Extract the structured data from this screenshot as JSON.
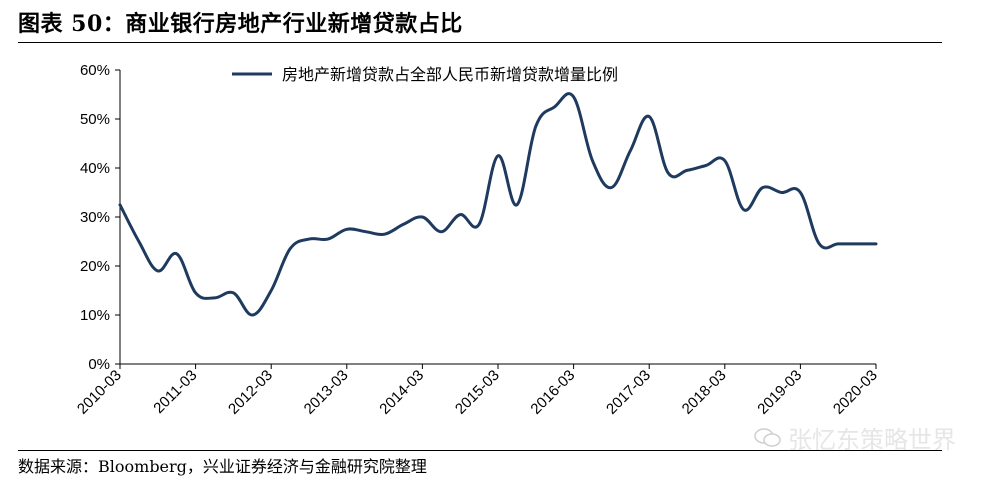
{
  "header": {
    "title": "图表 50：商业银行房地产行业新增贷款占比"
  },
  "footer": {
    "source": "数据来源：Bloomberg，兴业证券经济与金融研究院整理"
  },
  "watermark": {
    "text": "张忆东策略世界",
    "icon": "wechat-icon"
  },
  "colors": {
    "line": "#1f3a5f",
    "axis": "#000000"
  },
  "chart_data": {
    "type": "line",
    "title": "",
    "xlabel": "",
    "ylabel": "",
    "ylim": [
      0,
      60
    ],
    "y_ticks": [
      "0%",
      "10%",
      "20%",
      "30%",
      "40%",
      "50%",
      "60%"
    ],
    "x_ticks": [
      "2010-03",
      "2011-03",
      "2012-03",
      "2013-03",
      "2014-03",
      "2015-03",
      "2016-03",
      "2017-03",
      "2018-03",
      "2019-03",
      "2020-03"
    ],
    "legend": {
      "position": "top-center"
    },
    "grid": false,
    "series": [
      {
        "name": "房地产新增贷款占全部人民币新增贷款增量比例",
        "x": [
          2010.0,
          2010.25,
          2010.5,
          2010.75,
          2011.0,
          2011.25,
          2011.5,
          2011.75,
          2012.0,
          2012.25,
          2012.5,
          2012.75,
          2013.0,
          2013.25,
          2013.5,
          2013.75,
          2014.0,
          2014.25,
          2014.5,
          2014.75,
          2015.0,
          2015.25,
          2015.5,
          2015.75,
          2016.0,
          2016.25,
          2016.5,
          2016.75,
          2017.0,
          2017.25,
          2017.5,
          2017.75,
          2018.0,
          2018.25,
          2018.5,
          2018.75,
          2019.0,
          2019.25,
          2019.5,
          2019.75,
          2020.0
        ],
        "y": [
          32.5,
          25,
          19,
          22.5,
          14.5,
          13.5,
          14.5,
          10,
          15,
          23.5,
          25.5,
          25.5,
          27.5,
          27,
          26.5,
          28.5,
          30,
          27,
          30.5,
          28.5,
          42.5,
          32.5,
          48.5,
          52.5,
          54.5,
          41.5,
          36,
          43.5,
          50.5,
          39,
          39.5,
          40.5,
          41.5,
          31.5,
          36,
          35,
          35,
          24.5,
          24.5,
          24.5,
          24.5
        ]
      }
    ]
  }
}
